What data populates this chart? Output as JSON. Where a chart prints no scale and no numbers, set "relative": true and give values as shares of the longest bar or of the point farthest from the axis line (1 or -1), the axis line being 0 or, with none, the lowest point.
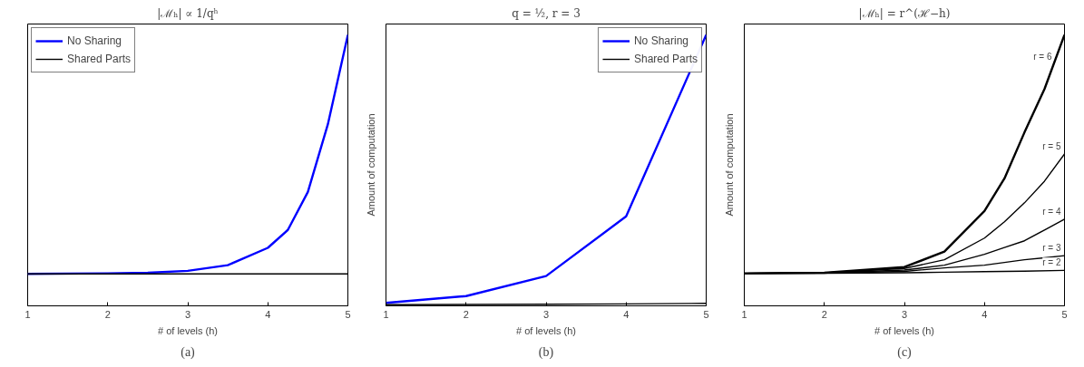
{
  "chart_data": [
    {
      "type": "line",
      "title": "|ℳₕ| ∝ 1/qʰ",
      "xlabel": "# of levels (h)",
      "relative": true,
      "xlim": [
        1,
        5
      ],
      "xticks": [
        1,
        2,
        3,
        4,
        5
      ],
      "tick_labels": "x",
      "grid": false,
      "legend": "top left",
      "annotations": [
        "(a)"
      ],
      "series": [
        {
          "name": "No Sharing",
          "color": "#0000ff",
          "x": [
            1,
            2,
            2.5,
            3,
            3.5,
            4,
            4.25,
            4.5,
            4.75,
            5
          ],
          "values": [
            0.118,
            0.12,
            0.122,
            0.129,
            0.15,
            0.214,
            0.28,
            0.42,
            0.67,
            1
          ]
        },
        {
          "name": "Shared Parts",
          "color": "#000000",
          "x": [
            1,
            5
          ],
          "values": [
            0.118,
            0.118
          ]
        }
      ]
    },
    {
      "type": "line",
      "title": "q = ½, r = 3",
      "xlabel": "# of levels (h)",
      "ylabel": "Amount of computation",
      "relative": true,
      "xlim": [
        1,
        5
      ],
      "xticks": [
        1,
        2,
        3,
        4,
        5
      ],
      "tick_labels": "x",
      "grid": false,
      "legend": "top right",
      "annotations": [
        "(b)"
      ],
      "series": [
        {
          "name": "No Sharing",
          "color": "#0000ff",
          "x": [
            1,
            2,
            3,
            4,
            5
          ],
          "values": [
            0.011,
            0.036,
            0.11,
            0.33,
            1
          ]
        },
        {
          "name": "Shared Parts",
          "color": "#000000",
          "x": [
            1,
            2,
            3,
            4,
            5
          ],
          "values": [
            0.004,
            0.005,
            0.006,
            0.007,
            0.009
          ]
        }
      ]
    },
    {
      "type": "line",
      "title": "|ℳₕ| = r^(ℋ−h)",
      "xlabel": "# of levels (h)",
      "ylabel": "Amount of computation",
      "relative": true,
      "xlim": [
        1,
        5
      ],
      "xticks": [
        1,
        2,
        3,
        4,
        5
      ],
      "tick_labels": "x",
      "grid": false,
      "annotations": [
        "(c)"
      ],
      "series": [
        {
          "name": "r = 6",
          "color": "#000000",
          "x": [
            1,
            2,
            3,
            3.5,
            4,
            4.25,
            4.5,
            4.75,
            5
          ],
          "values": [
            0.12,
            0.122,
            0.143,
            0.2,
            0.35,
            0.47,
            0.64,
            0.8,
            1
          ]
        },
        {
          "name": "r = 5",
          "color": "#000000",
          "x": [
            1,
            2,
            3,
            3.5,
            4,
            4.25,
            4.5,
            4.75,
            5
          ],
          "values": [
            0.12,
            0.122,
            0.138,
            0.17,
            0.25,
            0.31,
            0.38,
            0.46,
            0.56
          ]
        },
        {
          "name": "r = 4",
          "color": "#000000",
          "x": [
            1,
            2,
            3,
            3.5,
            4,
            4.25,
            4.5,
            4.75,
            5
          ],
          "values": [
            0.12,
            0.121,
            0.132,
            0.15,
            0.19,
            0.215,
            0.24,
            0.28,
            0.32
          ]
        },
        {
          "name": "r = 3",
          "color": "#000000",
          "x": [
            1,
            2,
            3,
            3.5,
            4,
            4.25,
            4.5,
            4.75,
            5
          ],
          "values": [
            0.12,
            0.121,
            0.127,
            0.14,
            0.15,
            0.16,
            0.17,
            0.177,
            0.185
          ]
        },
        {
          "name": "r = 2",
          "color": "#000000",
          "x": [
            1,
            2,
            3,
            3.5,
            4,
            4.5,
            5
          ],
          "values": [
            0.12,
            0.12,
            0.122,
            0.124,
            0.126,
            0.128,
            0.131
          ]
        }
      ]
    }
  ]
}
